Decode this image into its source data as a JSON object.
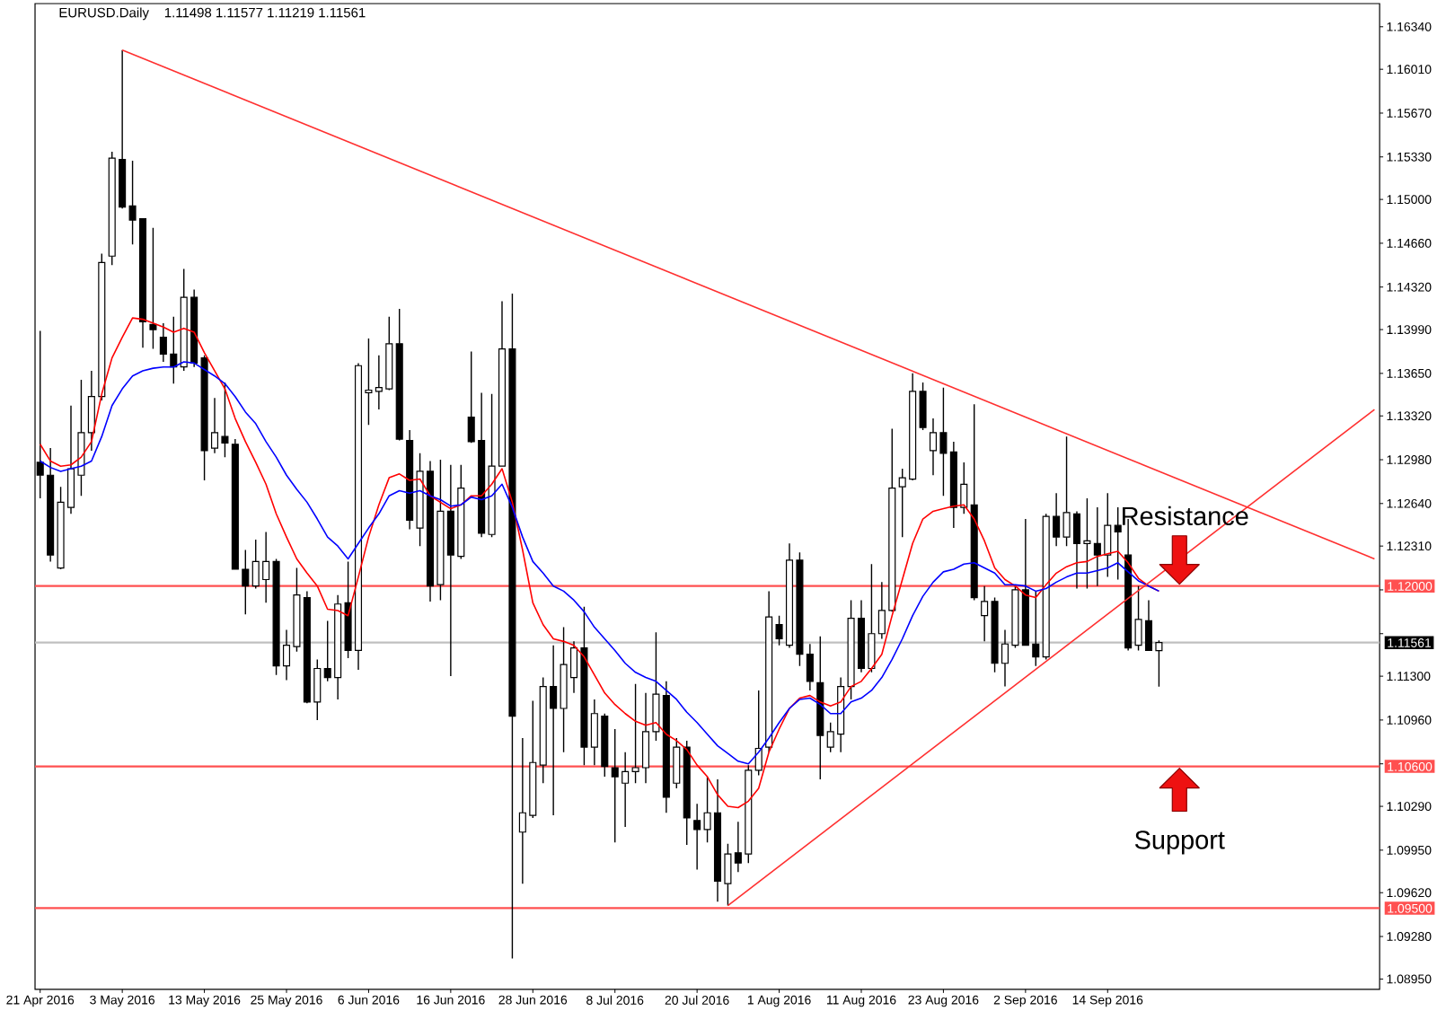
{
  "chart_data": {
    "type": "candlestick",
    "title": "EURUSD.Daily",
    "subtitle": "1.11498 1.11577 1.11219 1.11561",
    "categories": [
      "21 Apr 2016",
      null,
      null,
      null,
      null,
      null,
      null,
      null,
      "3 May 2016",
      null,
      null,
      null,
      null,
      null,
      null,
      null,
      "13 May 2016",
      null,
      null,
      null,
      null,
      null,
      null,
      null,
      "25 May 2016",
      null,
      null,
      null,
      null,
      null,
      null,
      null,
      "6 Jun 2016",
      null,
      null,
      null,
      null,
      null,
      null,
      null,
      "16 Jun 2016",
      null,
      null,
      null,
      null,
      null,
      null,
      null,
      "28 Jun 2016",
      null,
      null,
      null,
      null,
      null,
      null,
      null,
      "8 Jul 2016",
      null,
      null,
      null,
      null,
      null,
      null,
      null,
      "20 Jul 2016",
      null,
      null,
      null,
      null,
      null,
      null,
      null,
      "1 Aug 2016",
      null,
      null,
      null,
      null,
      null,
      null,
      null,
      "11 Aug 2016",
      null,
      null,
      null,
      null,
      null,
      null,
      null,
      "23 Aug 2016",
      null,
      null,
      null,
      null,
      null,
      null,
      null,
      "2 Sep 2016",
      null,
      null,
      null,
      null,
      null,
      null,
      null,
      "14 Sep 2016",
      null,
      null,
      null,
      null,
      null,
      null,
      null,
      null,
      null,
      null,
      null,
      null,
      null,
      null,
      null,
      null,
      null,
      null,
      null,
      null,
      null,
      null,
      null,
      null,
      null,
      null
    ],
    "color": "#000000",
    "colors": [
      "#000000",
      "#000000",
      "#ffffff",
      "#ffffff",
      "#ffffff",
      "#ffffff",
      "#ffffff",
      "#ffffff",
      "#000000",
      "#000000",
      "#000000",
      "#000000",
      "#000000",
      "#000000",
      "#ffffff",
      "#000000",
      "#000000",
      "#ffffff",
      "#000000",
      "#000000",
      "#000000",
      "#ffffff",
      "#ffffff",
      "#000000",
      "#ffffff",
      "#ffffff",
      "#000000",
      "#ffffff",
      "#000000",
      "#ffffff",
      "#000000",
      "#ffffff",
      "#ffffff",
      "#ffffff",
      "#ffffff",
      "#000000",
      "#000000",
      "#ffffff",
      "#000000",
      "#ffffff",
      "#000000",
      "#ffffff",
      "#000000",
      "#000000",
      "#ffffff",
      "#ffffff",
      "#000000",
      "#ffffff",
      "#ffffff",
      "#ffffff",
      "#000000",
      "#ffffff",
      "#ffffff",
      "#000000",
      "#ffffff",
      "#000000",
      "#000000",
      "#ffffff",
      "#ffffff",
      "#ffffff",
      "#ffffff",
      "#000000",
      "#ffffff",
      "#000000",
      "#000000",
      "#ffffff",
      "#000000",
      "#ffffff",
      "#000000",
      "#ffffff",
      "#ffffff",
      "#ffffff",
      "#000000",
      "#ffffff",
      "#000000",
      "#000000",
      "#000000",
      "#ffffff",
      "#ffffff",
      "#ffffff",
      "#000000",
      "#ffffff",
      "#ffffff",
      "#ffffff",
      "#ffffff",
      "#ffffff",
      "#000000",
      "#ffffff",
      "#000000",
      "#000000",
      "#ffffff",
      "#000000",
      "#ffffff",
      "#000000",
      "#ffffff",
      "#ffffff",
      "#000000",
      "#000000",
      "#ffffff",
      "#000000",
      "#ffffff",
      "#000000",
      "#ffffff",
      "#000000",
      "#ffffff",
      "#000000",
      "#000000",
      "#ffffff",
      "#000000",
      "#ffffff",
      null,
      null,
      null,
      null,
      null,
      null,
      null,
      null,
      null,
      null,
      null,
      null,
      null,
      null,
      null,
      null,
      null,
      null,
      null,
      null,
      null
    ],
    "ohlc": [
      [
        1.1296,
        1.1398,
        1.1268,
        1.1286
      ],
      [
        1.1286,
        1.1307,
        1.1219,
        1.1224
      ],
      [
        1.1214,
        1.1277,
        1.1213,
        1.1265
      ],
      [
        1.1261,
        1.134,
        1.1256,
        1.1291
      ],
      [
        1.1286,
        1.136,
        1.127,
        1.1319
      ],
      [
        1.1319,
        1.1367,
        1.1305,
        1.1347
      ],
      [
        1.1347,
        1.1458,
        1.1344,
        1.1451
      ],
      [
        1.1456,
        1.1537,
        1.1449,
        1.1532
      ],
      [
        1.1531,
        1.1616,
        1.1493,
        1.1494
      ],
      [
        1.1495,
        1.153,
        1.1465,
        1.1484
      ],
      [
        1.1485,
        1.1485,
        1.1385,
        1.1405
      ],
      [
        1.1403,
        1.1478,
        1.1384,
        1.1399
      ],
      [
        1.1393,
        1.1404,
        1.1374,
        1.138
      ],
      [
        1.138,
        1.1409,
        1.1357,
        1.137
      ],
      [
        1.137,
        1.1446,
        1.1367,
        1.1424
      ],
      [
        1.1424,
        1.143,
        1.137,
        1.1373
      ],
      [
        1.1377,
        1.1379,
        1.1282,
        1.1305
      ],
      [
        1.1307,
        1.1346,
        1.1303,
        1.1319
      ],
      [
        1.1316,
        1.1358,
        1.13,
        1.1311
      ],
      [
        1.131,
        1.1314,
        1.1213,
        1.1213
      ],
      [
        1.1213,
        1.1228,
        1.1178,
        1.12
      ],
      [
        1.12,
        1.1236,
        1.1198,
        1.1219
      ],
      [
        1.1205,
        1.1242,
        1.1187,
        1.1219
      ],
      [
        1.1219,
        1.1221,
        1.1131,
        1.1138
      ],
      [
        1.1138,
        1.1166,
        1.1127,
        1.1154
      ],
      [
        1.1153,
        1.1214,
        1.1149,
        1.1193
      ],
      [
        1.1191,
        1.1196,
        1.1109,
        1.111
      ],
      [
        1.111,
        1.1143,
        1.1096,
        1.1136
      ],
      [
        1.1136,
        1.1173,
        1.1126,
        1.1129
      ],
      [
        1.1129,
        1.1193,
        1.1112,
        1.1186
      ],
      [
        1.1187,
        1.1219,
        1.1144,
        1.115
      ],
      [
        1.115,
        1.1373,
        1.1135,
        1.1371
      ],
      [
        1.135,
        1.1392,
        1.1325,
        1.1352
      ],
      [
        1.1351,
        1.1379,
        1.1337,
        1.1354
      ],
      [
        1.1353,
        1.1409,
        1.1352,
        1.1388
      ],
      [
        1.1388,
        1.1415,
        1.1313,
        1.1314
      ],
      [
        1.1313,
        1.1321,
        1.1244,
        1.1251
      ],
      [
        1.1245,
        1.1303,
        1.1231,
        1.1289
      ],
      [
        1.1289,
        1.1297,
        1.1188,
        1.12
      ],
      [
        1.1201,
        1.1298,
        1.1189,
        1.1258
      ],
      [
        1.1258,
        1.1294,
        1.113,
        1.1224
      ],
      [
        1.1223,
        1.1294,
        1.1221,
        1.1276
      ],
      [
        1.1331,
        1.1382,
        1.1311,
        1.1312
      ],
      [
        1.1313,
        1.135,
        1.1238,
        1.1241
      ],
      [
        1.124,
        1.1349,
        1.1238,
        1.1293
      ],
      [
        1.1293,
        1.1421,
        1.1293,
        1.1384
      ],
      [
        1.1384,
        1.1427,
        1.0911,
        1.1099
      ],
      [
        1.1009,
        1.1082,
        1.0969,
        1.1024
      ],
      [
        1.1022,
        1.1111,
        1.102,
        1.1063
      ],
      [
        1.1061,
        1.1129,
        1.1047,
        1.1122
      ],
      [
        1.1122,
        1.1154,
        1.1022,
        1.1105
      ],
      [
        1.1105,
        1.1168,
        1.1071,
        1.1139
      ],
      [
        1.1129,
        1.1157,
        1.1117,
        1.1152
      ],
      [
        1.1152,
        1.1184,
        1.1061,
        1.1075
      ],
      [
        1.1075,
        1.1112,
        1.1061,
        1.1101
      ],
      [
        1.1099,
        1.1101,
        1.1052,
        1.106
      ],
      [
        1.1059,
        1.1089,
        1.1001,
        1.1052
      ],
      [
        1.1047,
        1.1071,
        1.1013,
        1.1056
      ],
      [
        1.1056,
        1.1124,
        1.1047,
        1.1059
      ],
      [
        1.1059,
        1.1117,
        1.1047,
        1.1087
      ],
      [
        1.1087,
        1.1164,
        1.108,
        1.1116
      ],
      [
        1.1115,
        1.1126,
        1.1024,
        1.1036
      ],
      [
        1.1047,
        1.1082,
        1.1043,
        1.1075
      ],
      [
        1.1075,
        1.108,
        1.0999,
        1.102
      ],
      [
        1.1018,
        1.1031,
        1.098,
        1.1011
      ],
      [
        1.1011,
        1.1052,
        1.1001,
        1.1024
      ],
      [
        1.1024,
        1.105,
        1.0955,
        1.0971
      ],
      [
        1.0969,
        1.1,
        1.0952,
        1.0992
      ],
      [
        1.0993,
        1.1017,
        1.0978,
        1.0985
      ],
      [
        1.0992,
        1.1061,
        1.0985,
        1.1057
      ],
      [
        1.1057,
        1.1119,
        1.1053,
        1.1074
      ],
      [
        1.1075,
        1.1196,
        1.1071,
        1.1176
      ],
      [
        1.117,
        1.1177,
        1.1154,
        1.1159
      ],
      [
        1.1154,
        1.1233,
        1.1152,
        1.122
      ],
      [
        1.122,
        1.1226,
        1.1138,
        1.1147
      ],
      [
        1.1147,
        1.1155,
        1.1119,
        1.1126
      ],
      [
        1.1125,
        1.1161,
        1.105,
        1.1084
      ],
      [
        1.1075,
        1.1094,
        1.1071,
        1.1087
      ],
      [
        1.1085,
        1.1129,
        1.1071,
        1.1122
      ],
      [
        1.1122,
        1.1189,
        1.1112,
        1.1175
      ],
      [
        1.1175,
        1.1189,
        1.1133,
        1.1136
      ],
      [
        1.1136,
        1.1217,
        1.1133,
        1.1163
      ],
      [
        1.1163,
        1.1203,
        1.1159,
        1.1181
      ],
      [
        1.1181,
        1.1322,
        1.118,
        1.1276
      ],
      [
        1.1277,
        1.1291,
        1.1238,
        1.1284
      ],
      [
        1.1283,
        1.1365,
        1.1282,
        1.1351
      ],
      [
        1.1351,
        1.1358,
        1.1321,
        1.1323
      ],
      [
        1.1305,
        1.133,
        1.1286,
        1.1319
      ],
      [
        1.1319,
        1.1354,
        1.127,
        1.1303
      ],
      [
        1.1304,
        1.1312,
        1.1245,
        1.1261
      ],
      [
        1.1261,
        1.1296,
        1.1256,
        1.1279
      ],
      [
        1.1263,
        1.1341,
        1.1189,
        1.1191
      ],
      [
        1.1177,
        1.12,
        1.1157,
        1.1188
      ],
      [
        1.1188,
        1.1191,
        1.1133,
        1.114
      ],
      [
        1.114,
        1.1166,
        1.1122,
        1.1155
      ],
      [
        1.1154,
        1.1201,
        1.1152,
        1.1197
      ],
      [
        1.1197,
        1.1252,
        1.1154,
        1.1154
      ],
      [
        1.1155,
        1.1196,
        1.1138,
        1.1145
      ],
      [
        1.1145,
        1.1256,
        1.1143,
        1.1254
      ],
      [
        1.1254,
        1.1272,
        1.1231,
        1.1238
      ],
      [
        1.1238,
        1.1316,
        1.1231,
        1.1257
      ],
      [
        1.1256,
        1.1258,
        1.1198,
        1.1233
      ],
      [
        1.1233,
        1.1268,
        1.1198,
        1.1235
      ],
      [
        1.1233,
        1.1261,
        1.12,
        1.1224
      ],
      [
        1.1224,
        1.1272,
        1.1207,
        1.1247
      ],
      [
        1.1247,
        1.1261,
        1.1205,
        1.1242
      ],
      [
        1.1224,
        1.1252,
        1.115,
        1.1152
      ],
      [
        1.1154,
        1.12,
        1.115,
        1.1174
      ],
      [
        1.1173,
        1.1189,
        1.115,
        1.115
      ],
      [
        1.11498,
        1.11577,
        1.11219,
        1.11561
      ],
      null,
      null,
      null,
      null,
      null,
      null,
      null,
      null,
      null,
      null,
      null,
      null,
      null,
      null,
      null,
      null,
      null,
      null,
      null,
      null,
      null
    ],
    "series": [
      {
        "type": "line",
        "color": "#ff0000",
        "values": [
          1.131,
          1.1297,
          1.1293,
          1.1294,
          1.13,
          1.1312,
          1.1349,
          1.1377,
          1.1393,
          1.1408,
          1.1407,
          1.1404,
          1.1401,
          1.1397,
          1.14,
          1.1397,
          1.1381,
          1.1367,
          1.1353,
          1.133,
          1.1312,
          1.1296,
          1.1279,
          1.1256,
          1.1238,
          1.1221,
          1.121,
          1.12,
          1.1182,
          1.1181,
          1.1177,
          1.1207,
          1.1238,
          1.1263,
          1.1284,
          1.1287,
          1.1282,
          1.1283,
          1.127,
          1.1265,
          1.126,
          1.1263,
          1.127,
          1.127,
          1.1279,
          1.1291,
          1.1265,
          1.1228,
          1.1187,
          1.117,
          1.1159,
          1.1157,
          1.1154,
          1.1145,
          1.1131,
          1.1117,
          1.1108,
          1.1101,
          1.1095,
          1.1092,
          1.1094,
          1.1085,
          1.108,
          1.1073,
          1.1061,
          1.1052,
          1.1038,
          1.1029,
          1.1028,
          1.1033,
          1.1043,
          1.1071,
          1.1089,
          1.1105,
          1.1113,
          1.1115,
          1.111,
          1.1107,
          1.111,
          1.1122,
          1.1126,
          1.1136,
          1.1147,
          1.1177,
          1.1205,
          1.1233,
          1.1252,
          1.1258,
          1.126,
          1.1262,
          1.1263,
          1.1252,
          1.1235,
          1.1214,
          1.1205,
          1.12,
          1.1193,
          1.1191,
          1.1201,
          1.121,
          1.1215,
          1.1218,
          1.1219,
          1.1223,
          1.1225,
          1.1227,
          1.1218,
          1.1206,
          1.12,
          1.1196,
          null,
          null,
          null,
          null,
          null,
          null,
          null,
          null,
          null,
          null,
          null,
          null,
          null,
          null,
          null,
          null,
          null,
          null,
          null,
          null,
          null
        ]
      },
      {
        "type": "line",
        "color": "#0000ff",
        "values": [
          1.1297,
          1.1292,
          1.1289,
          1.1291,
          1.1293,
          1.1297,
          1.1316,
          1.134,
          1.1353,
          1.1363,
          1.1367,
          1.1369,
          1.137,
          1.137,
          1.1374,
          1.1373,
          1.1368,
          1.1363,
          1.1357,
          1.1347,
          1.1335,
          1.1326,
          1.1312,
          1.13,
          1.1286,
          1.1275,
          1.1265,
          1.1252,
          1.1238,
          1.1231,
          1.1221,
          1.1233,
          1.1245,
          1.1256,
          1.127,
          1.1274,
          1.1272,
          1.1274,
          1.127,
          1.1267,
          1.1262,
          1.1263,
          1.1269,
          1.1267,
          1.127,
          1.1279,
          1.1261,
          1.1238,
          1.1219,
          1.121,
          1.12,
          1.1196,
          1.1189,
          1.118,
          1.1168,
          1.1159,
          1.115,
          1.114,
          1.1133,
          1.1129,
          1.1126,
          1.1119,
          1.1112,
          1.1102,
          1.1094,
          1.1085,
          1.1076,
          1.107,
          1.1064,
          1.1062,
          1.1071,
          1.1082,
          1.1094,
          1.1105,
          1.1112,
          1.1113,
          1.1108,
          1.1101,
          1.1101,
          1.111,
          1.1113,
          1.1119,
          1.1129,
          1.1143,
          1.1159,
          1.1177,
          1.1192,
          1.1203,
          1.1211,
          1.1213,
          1.1217,
          1.1218,
          1.1214,
          1.121,
          1.1201,
          1.1201,
          1.12,
          1.1196,
          1.1198,
          1.1203,
          1.1207,
          1.121,
          1.121,
          1.1212,
          1.1214,
          1.1218,
          1.1211,
          1.1204,
          1.12,
          1.1196,
          null,
          null,
          null,
          null,
          null,
          null,
          null,
          null,
          null,
          null,
          null,
          null,
          null,
          null,
          null,
          null,
          null,
          null,
          null,
          null,
          null
        ]
      },
      {
        "type": "line",
        "color": "#ff3030",
        "values": [
          null,
          null,
          null,
          null,
          null,
          null,
          null,
          null,
          1.1616,
          null,
          null,
          null,
          null,
          null,
          null,
          null,
          null,
          null,
          null,
          null,
          null,
          null,
          null,
          null,
          null,
          null,
          null,
          null,
          null,
          null,
          null,
          null,
          null,
          null,
          null,
          null,
          null,
          null,
          null,
          null,
          null,
          null,
          null,
          null,
          null,
          null,
          null,
          null,
          null,
          null,
          null,
          null,
          null,
          null,
          null,
          null,
          null,
          null,
          null,
          null,
          null,
          null,
          null,
          null,
          null,
          null,
          null,
          null,
          null,
          null,
          null,
          null,
          null,
          null,
          null,
          null,
          null,
          null,
          null,
          null,
          null,
          null,
          null,
          null,
          null,
          null,
          null,
          null,
          null,
          null,
          null,
          null,
          null,
          null,
          null,
          null,
          null,
          null,
          null,
          null,
          null,
          null,
          null,
          null,
          null,
          null,
          null,
          null,
          null,
          null,
          null,
          null,
          null,
          null,
          null,
          null,
          null,
          null,
          null,
          null,
          null,
          null,
          null,
          null,
          null,
          null,
          null,
          null,
          null,
          null,
          1.1221
        ]
      },
      {
        "type": "line",
        "color": "#ff3030",
        "values": [
          null,
          null,
          null,
          null,
          null,
          null,
          null,
          null,
          null,
          null,
          null,
          null,
          null,
          null,
          null,
          null,
          null,
          null,
          null,
          null,
          null,
          null,
          null,
          null,
          null,
          null,
          null,
          null,
          null,
          null,
          null,
          null,
          null,
          null,
          null,
          null,
          null,
          null,
          null,
          null,
          null,
          null,
          null,
          null,
          null,
          null,
          null,
          null,
          null,
          null,
          null,
          null,
          null,
          null,
          null,
          null,
          null,
          null,
          null,
          null,
          null,
          null,
          null,
          null,
          null,
          null,
          null,
          1.0952,
          null,
          null,
          null,
          null,
          null,
          null,
          null,
          null,
          null,
          null,
          null,
          null,
          null,
          null,
          null,
          null,
          null,
          null,
          null,
          null,
          null,
          null,
          null,
          null,
          null,
          null,
          null,
          null,
          null,
          null,
          null,
          null,
          null,
          null,
          null,
          null,
          null,
          null,
          null,
          null,
          null,
          null,
          null,
          null,
          null,
          null,
          null,
          null,
          null,
          null,
          null,
          null,
          null,
          null,
          null,
          null,
          null,
          null,
          null,
          null,
          null,
          null,
          1.1337
        ]
      }
    ],
    "ylim": [
      1.0887,
      1.1652
    ],
    "yticks": [
      {
        "value": 1.1634,
        "label": "1.16340"
      },
      {
        "value": 1.1601,
        "label": "1.16010"
      },
      {
        "value": 1.1567,
        "label": "1.15670"
      },
      {
        "value": 1.1533,
        "label": "1.15330"
      },
      {
        "value": 1.15,
        "label": "1.15000"
      },
      {
        "value": 1.1466,
        "label": "1.14660"
      },
      {
        "value": 1.1432,
        "label": "1.14320"
      },
      {
        "value": 1.1399,
        "label": "1.13990"
      },
      {
        "value": 1.1365,
        "label": "1.13650"
      },
      {
        "value": 1.1332,
        "label": "1.13320"
      },
      {
        "value": 1.1298,
        "label": "1.12980"
      },
      {
        "value": 1.1264,
        "label": "1.12640"
      },
      {
        "value": 1.1231,
        "label": "1.12310"
      },
      {
        "value": 1.1197,
        "label": null
      },
      {
        "value": 1.1163,
        "label": null
      },
      {
        "value": 1.113,
        "label": "1.11300"
      },
      {
        "value": 1.1096,
        "label": "1.10960"
      },
      {
        "value": 1.1062,
        "label": null
      },
      {
        "value": 1.1029,
        "label": "1.10290"
      },
      {
        "value": 1.0995,
        "label": "1.09950"
      },
      {
        "value": 1.0962,
        "label": "1.09620"
      },
      {
        "value": 1.0928,
        "label": "1.09280"
      },
      {
        "value": 1.0895,
        "label": "1.08950"
      }
    ],
    "ref_lines": [
      {
        "axis": "y",
        "value": 1.12,
        "label": "1.12000",
        "color": "#ff5050"
      },
      {
        "axis": "y",
        "value": 1.11561,
        "label": "1.11561",
        "color": "#c0c0c0"
      },
      {
        "axis": "y",
        "value": 1.106,
        "label": "1.10600",
        "color": "#ff5050"
      },
      {
        "axis": "y",
        "value": 1.095,
        "label": "1.09500",
        "color": "#ff5050"
      }
    ],
    "annotations": [
      {
        "text": "Resistance",
        "y": 1.12
      },
      {
        "text": "Support",
        "y": 1.106
      }
    ]
  }
}
